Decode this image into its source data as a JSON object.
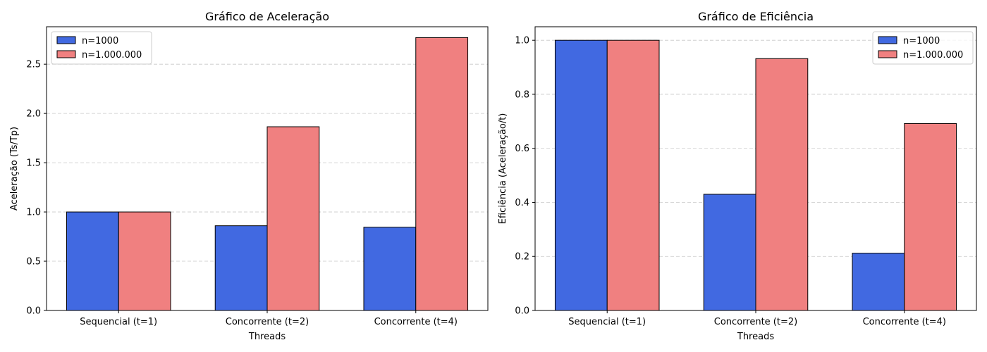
{
  "chart_data": [
    {
      "type": "bar",
      "title": "Gráfico de Aceleração",
      "xlabel": "Threads",
      "ylabel": "Aceleração (Ts/Tp)",
      "categories": [
        "Sequencial (t=1)",
        "Concorrente (t=2)",
        "Concorrente (t=4)"
      ],
      "series": [
        {
          "name": "n=1000",
          "color": "#4169e1",
          "values": [
            1.0,
            0.86,
            0.845
          ]
        },
        {
          "name": "n=1.000.000",
          "color": "#f08080",
          "values": [
            1.0,
            1.865,
            2.77
          ]
        }
      ],
      "ylim": [
        0,
        2.88
      ],
      "yticks": [
        0.0,
        0.5,
        1.0,
        1.5,
        2.0,
        2.5
      ],
      "ytick_labels": [
        "0.0",
        "0.5",
        "1.0",
        "1.5",
        "2.0",
        "2.5"
      ],
      "grid": "y-dashed",
      "legend_position": "upper-left"
    },
    {
      "type": "bar",
      "title": "Gráfico de Eficiência",
      "xlabel": "Threads",
      "ylabel": "Eficiência (Aceleração/t)",
      "categories": [
        "Sequencial (t=1)",
        "Concorrente (t=2)",
        "Concorrente (t=4)"
      ],
      "series": [
        {
          "name": "n=1000",
          "color": "#4169e1",
          "values": [
            1.0,
            0.43,
            0.212
          ]
        },
        {
          "name": "n=1.000.000",
          "color": "#f08080",
          "values": [
            1.0,
            0.932,
            0.692
          ]
        }
      ],
      "ylim": [
        0,
        1.05
      ],
      "yticks": [
        0.0,
        0.2,
        0.4,
        0.6,
        0.8,
        1.0
      ],
      "ytick_labels": [
        "0.0",
        "0.2",
        "0.4",
        "0.6",
        "0.8",
        "1.0"
      ],
      "grid": "y-dashed",
      "legend_position": "upper-right"
    }
  ]
}
